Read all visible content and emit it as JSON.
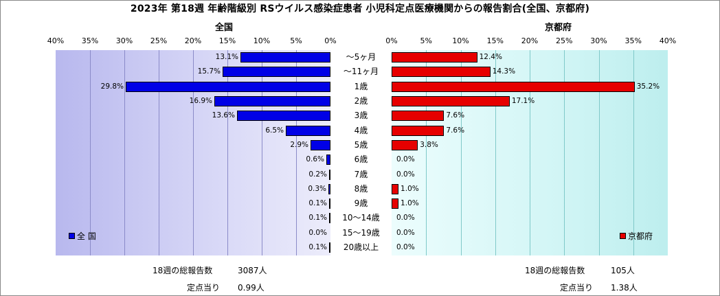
{
  "title": "2023年 第18週 年齢階級別 RSウイルス感染症患者 小児科定点医療機関からの報告割合(全国、京都府)",
  "colors": {
    "national": "#0000e6",
    "kyoto": "#e60000"
  },
  "chart_data": [
    {
      "type": "bar",
      "orientation": "horizontal-reversed",
      "title": "全国",
      "legend": "全 国",
      "legend_position": "bottom-left",
      "xlim": [
        0,
        40
      ],
      "ticks": [
        "40%",
        "35%",
        "30%",
        "25%",
        "20%",
        "15%",
        "10%",
        "5%",
        "0%"
      ],
      "categories": [
        "～5ヶ月",
        "～11ヶ月",
        "1歳",
        "2歳",
        "3歳",
        "4歳",
        "5歳",
        "6歳",
        "7歳",
        "8歳",
        "9歳",
        "10～14歳",
        "15～19歳",
        "20歳以上"
      ],
      "values": [
        13.1,
        15.7,
        29.8,
        16.9,
        13.6,
        6.5,
        2.9,
        0.6,
        0.2,
        0.3,
        0.1,
        0.1,
        0.0,
        0.1
      ],
      "labels": [
        "13.1%",
        "15.7%",
        "29.8%",
        "16.9%",
        "13.6%",
        "6.5%",
        "2.9%",
        "0.6%",
        "0.2%",
        "0.3%",
        "0.1%",
        "0.1%",
        "0.0%",
        "0.1%"
      ]
    },
    {
      "type": "bar",
      "orientation": "horizontal",
      "title": "京都府",
      "legend": "京都府",
      "legend_position": "bottom-right",
      "xlim": [
        0,
        40
      ],
      "ticks": [
        "0%",
        "5%",
        "10%",
        "15%",
        "20%",
        "25%",
        "30%",
        "35%",
        "40%"
      ],
      "categories": [
        "～5ヶ月",
        "～11ヶ月",
        "1歳",
        "2歳",
        "3歳",
        "4歳",
        "5歳",
        "6歳",
        "7歳",
        "8歳",
        "9歳",
        "10～14歳",
        "15～19歳",
        "20歳以上"
      ],
      "values": [
        12.4,
        14.3,
        35.2,
        17.1,
        7.6,
        7.6,
        3.8,
        0.0,
        0.0,
        1.0,
        1.0,
        0.0,
        0.0,
        0.0
      ],
      "labels": [
        "12.4%",
        "14.3%",
        "35.2%",
        "17.1%",
        "7.6%",
        "7.6%",
        "3.8%",
        "0.0%",
        "0.0%",
        "1.0%",
        "1.0%",
        "0.0%",
        "0.0%",
        "0.0%"
      ]
    }
  ],
  "footer": {
    "national_reports_label": "18週の総報告数",
    "national_reports_value": "3087人",
    "national_per_label": "定点当り",
    "national_per_value": "0.99人",
    "kyoto_reports_label": "18週の総報告数",
    "kyoto_reports_value": "105人",
    "kyoto_per_label": "定点当り",
    "kyoto_per_value": "1.38人"
  }
}
